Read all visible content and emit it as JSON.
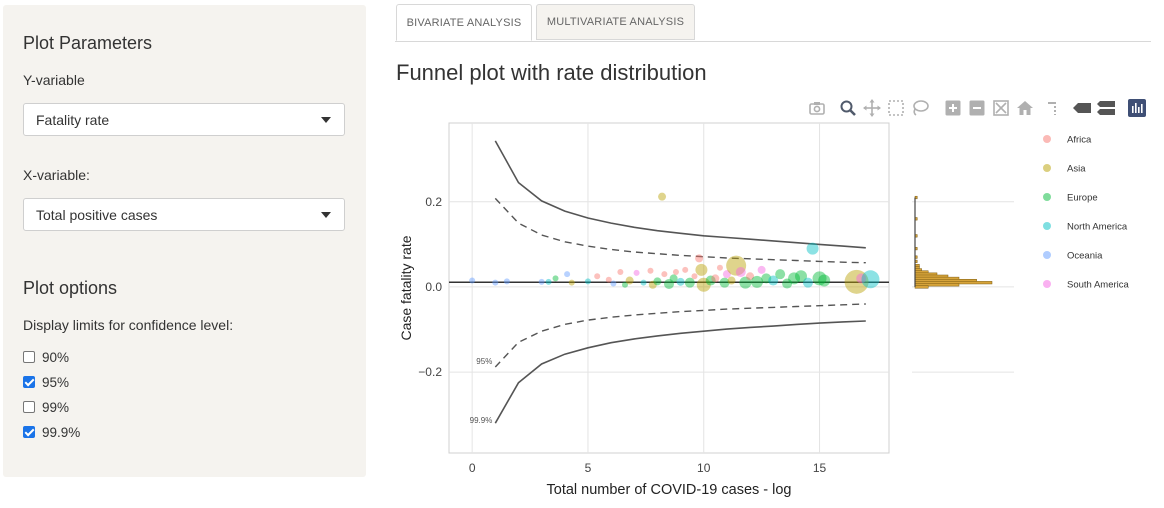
{
  "sidebar": {
    "params_title": "Plot Parameters",
    "y_label": "Y-variable",
    "y_value": "Fatality rate",
    "x_label": "X-variable:",
    "x_value": "Total positive cases",
    "options_title": "Plot options",
    "ci_label": "Display limits for confidence level:",
    "checkboxes": [
      {
        "label": "90%",
        "checked": false
      },
      {
        "label": "95%",
        "checked": true
      },
      {
        "label": "99%",
        "checked": false
      },
      {
        "label": "99.9%",
        "checked": true
      }
    ]
  },
  "tabs": [
    {
      "label": "BIVARIATE ANALYSIS",
      "active": true
    },
    {
      "label": "MULTIVARIATE ANALYSIS",
      "active": false
    }
  ],
  "title": "Funnel plot with rate distribution",
  "modebar": [
    "camera-icon",
    "zoom-icon",
    "pan-icon",
    "box-select-icon",
    "lasso-icon",
    "zoom-in-icon",
    "zoom-out-icon",
    "autoscale-icon",
    "reset-axes-icon",
    "spike-lines-icon",
    "hover-closest-icon",
    "hover-compare-icon",
    "plotly-logo-icon"
  ],
  "chart_data": {
    "type": "scatter",
    "xlabel": "Total number of COVID-19 cases - log",
    "ylabel": "Case fatality rate",
    "xlim": [
      -1,
      18
    ],
    "ylim": [
      -0.39,
      0.385
    ],
    "xticks": [
      "0",
      "5",
      "10",
      "15"
    ],
    "yticks": [
      "0.2",
      "0.0",
      "−0.2"
    ],
    "reference_line": 0.011,
    "funnel": {
      "x": [
        1,
        2,
        3,
        4,
        5,
        6,
        7,
        8,
        9,
        10,
        11,
        12,
        13,
        14,
        15,
        16,
        17
      ],
      "upper_999": [
        0.343,
        0.245,
        0.202,
        0.178,
        0.162,
        0.15,
        0.14,
        0.132,
        0.126,
        0.12,
        0.116,
        0.112,
        0.108,
        0.104,
        0.1,
        0.096,
        0.092
      ],
      "lower_999": [
        -0.32,
        -0.225,
        -0.181,
        -0.158,
        -0.143,
        -0.131,
        -0.122,
        -0.115,
        -0.109,
        -0.104,
        -0.099,
        -0.095,
        -0.092,
        -0.088,
        -0.085,
        -0.082,
        -0.08
      ],
      "upper_95": [
        0.208,
        0.15,
        0.122,
        0.106,
        0.096,
        0.088,
        0.082,
        0.078,
        0.074,
        0.071,
        0.068,
        0.066,
        0.064,
        0.062,
        0.06,
        0.058,
        0.057
      ],
      "lower_95": [
        -0.188,
        -0.13,
        -0.104,
        -0.088,
        -0.078,
        -0.071,
        -0.066,
        -0.062,
        -0.058,
        -0.055,
        -0.052,
        -0.05,
        -0.048,
        -0.046,
        -0.044,
        -0.042,
        -0.04
      ],
      "labels": [
        "95%",
        "99.9%"
      ]
    },
    "legend": {
      "position": "right",
      "entries": [
        {
          "name": "Africa",
          "color": "#F8766D"
        },
        {
          "name": "Asia",
          "color": "#B79F00"
        },
        {
          "name": "Europe",
          "color": "#00BA38"
        },
        {
          "name": "North America",
          "color": "#00BFC4"
        },
        {
          "name": "Oceania",
          "color": "#619CFF"
        },
        {
          "name": "South America",
          "color": "#F564E3"
        }
      ]
    },
    "points": [
      {
        "x": 0.0,
        "y": 0.015,
        "g": 4,
        "s": 3
      },
      {
        "x": 1.0,
        "y": 0.01,
        "g": 4,
        "s": 3
      },
      {
        "x": 1.5,
        "y": 0.013,
        "g": 4,
        "s": 3
      },
      {
        "x": 3.0,
        "y": 0.012,
        "g": 4,
        "s": 3
      },
      {
        "x": 3.3,
        "y": 0.012,
        "g": 3,
        "s": 3
      },
      {
        "x": 3.6,
        "y": 0.02,
        "g": 2,
        "s": 3
      },
      {
        "x": 4.1,
        "y": 0.03,
        "g": 4,
        "s": 3
      },
      {
        "x": 4.3,
        "y": 0.01,
        "g": 1,
        "s": 3
      },
      {
        "x": 5.0,
        "y": 0.013,
        "g": 3,
        "s": 3
      },
      {
        "x": 5.4,
        "y": 0.025,
        "g": 0,
        "s": 3
      },
      {
        "x": 5.9,
        "y": 0.017,
        "g": 0,
        "s": 3
      },
      {
        "x": 6.1,
        "y": 0.008,
        "g": 4,
        "s": 3
      },
      {
        "x": 6.4,
        "y": 0.035,
        "g": 0,
        "s": 3
      },
      {
        "x": 6.6,
        "y": 0.005,
        "g": 2,
        "s": 3
      },
      {
        "x": 6.8,
        "y": 0.015,
        "g": 1,
        "s": 4
      },
      {
        "x": 7.1,
        "y": 0.033,
        "g": 5,
        "s": 3
      },
      {
        "x": 7.4,
        "y": 0.01,
        "g": 3,
        "s": 3
      },
      {
        "x": 7.7,
        "y": 0.038,
        "g": 0,
        "s": 3
      },
      {
        "x": 7.8,
        "y": 0.005,
        "g": 1,
        "s": 4
      },
      {
        "x": 8.0,
        "y": 0.013,
        "g": 2,
        "s": 4
      },
      {
        "x": 8.2,
        "y": 0.212,
        "g": 1,
        "s": 4
      },
      {
        "x": 8.3,
        "y": 0.03,
        "g": 0,
        "s": 3
      },
      {
        "x": 8.5,
        "y": 0.007,
        "g": 2,
        "s": 5
      },
      {
        "x": 8.7,
        "y": 0.02,
        "g": 2,
        "s": 4
      },
      {
        "x": 8.8,
        "y": 0.035,
        "g": 0,
        "s": 3
      },
      {
        "x": 9.0,
        "y": 0.012,
        "g": 3,
        "s": 4
      },
      {
        "x": 9.2,
        "y": 0.04,
        "g": 0,
        "s": 3
      },
      {
        "x": 9.4,
        "y": 0.01,
        "g": 2,
        "s": 5
      },
      {
        "x": 9.6,
        "y": 0.025,
        "g": 0,
        "s": 3
      },
      {
        "x": 9.8,
        "y": 0.067,
        "g": 0,
        "s": 4
      },
      {
        "x": 9.9,
        "y": 0.04,
        "g": 1,
        "s": 6
      },
      {
        "x": 10.0,
        "y": 0.005,
        "g": 1,
        "s": 7
      },
      {
        "x": 10.3,
        "y": 0.015,
        "g": 2,
        "s": 5
      },
      {
        "x": 10.5,
        "y": 0.02,
        "g": 0,
        "s": 4
      },
      {
        "x": 10.7,
        "y": 0.045,
        "g": 0,
        "s": 3
      },
      {
        "x": 10.9,
        "y": 0.01,
        "g": 2,
        "s": 5
      },
      {
        "x": 11.0,
        "y": 0.03,
        "g": 5,
        "s": 4
      },
      {
        "x": 11.2,
        "y": 0.015,
        "g": 1,
        "s": 4
      },
      {
        "x": 11.4,
        "y": 0.05,
        "g": 1,
        "s": 10
      },
      {
        "x": 11.6,
        "y": 0.035,
        "g": 5,
        "s": 5
      },
      {
        "x": 11.8,
        "y": 0.01,
        "g": 2,
        "s": 6
      },
      {
        "x": 12.0,
        "y": 0.025,
        "g": 0,
        "s": 4
      },
      {
        "x": 12.3,
        "y": 0.012,
        "g": 2,
        "s": 6
      },
      {
        "x": 12.5,
        "y": 0.04,
        "g": 5,
        "s": 4
      },
      {
        "x": 12.7,
        "y": 0.02,
        "g": 2,
        "s": 5
      },
      {
        "x": 13.0,
        "y": 0.015,
        "g": 3,
        "s": 5
      },
      {
        "x": 13.3,
        "y": 0.03,
        "g": 2,
        "s": 5
      },
      {
        "x": 13.6,
        "y": 0.008,
        "g": 2,
        "s": 5
      },
      {
        "x": 13.9,
        "y": 0.02,
        "g": 2,
        "s": 6
      },
      {
        "x": 14.2,
        "y": 0.025,
        "g": 2,
        "s": 6
      },
      {
        "x": 14.5,
        "y": 0.01,
        "g": 3,
        "s": 5
      },
      {
        "x": 14.7,
        "y": 0.09,
        "g": 3,
        "s": 6
      },
      {
        "x": 15.0,
        "y": 0.02,
        "g": 2,
        "s": 7
      },
      {
        "x": 15.2,
        "y": 0.015,
        "g": 2,
        "s": 6
      },
      {
        "x": 16.6,
        "y": 0.012,
        "g": 1,
        "s": 12
      },
      {
        "x": 16.8,
        "y": 0.02,
        "g": 5,
        "s": 5
      },
      {
        "x": 17.2,
        "y": 0.018,
        "g": 3,
        "s": 9
      }
    ],
    "histogram": {
      "bins": [
        0.21,
        0.16,
        0.12,
        0.09,
        0.07,
        0.06,
        0.05,
        0.045,
        0.04,
        0.035,
        0.03,
        0.025,
        0.02,
        0.015,
        0.01,
        0.005,
        0.0
      ],
      "counts": [
        1,
        1,
        1,
        1,
        1,
        1,
        2,
        2,
        3,
        6,
        10,
        15,
        20,
        28,
        35,
        20,
        6
      ]
    }
  }
}
